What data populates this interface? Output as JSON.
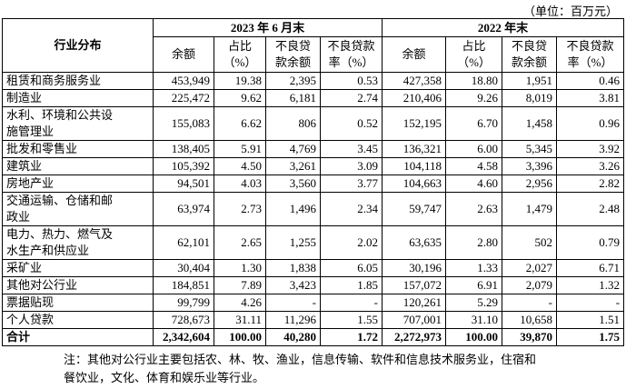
{
  "unit_note": "（单位：百万元）",
  "table": {
    "corner": "行业分布",
    "groups": [
      {
        "label": "2023 年 6 月末",
        "columns": [
          "余额",
          "占比\n（%）",
          "不良贷\n款余额",
          "不良贷款\n率（%）"
        ]
      },
      {
        "label": "2022 年末",
        "columns": [
          "余额",
          "占比\n（%）",
          "不良贷\n款余额",
          "不良贷款\n率（%）"
        ]
      }
    ],
    "rows": [
      [
        "租赁和商务服务业",
        "453,949",
        "19.38",
        "2,395",
        "0.53",
        "427,358",
        "18.80",
        "1,951",
        "0.46"
      ],
      [
        "制造业",
        "225,472",
        "9.62",
        "6,181",
        "2.74",
        "210,406",
        "9.26",
        "8,019",
        "3.81"
      ],
      [
        "水利、环境和公共设\n施管理业",
        "155,083",
        "6.62",
        "806",
        "0.52",
        "152,195",
        "6.70",
        "1,458",
        "0.96"
      ],
      [
        "批发和零售业",
        "138,405",
        "5.91",
        "4,769",
        "3.45",
        "136,321",
        "6.00",
        "5,345",
        "3.92"
      ],
      [
        "建筑业",
        "105,392",
        "4.50",
        "3,261",
        "3.09",
        "104,118",
        "4.58",
        "3,396",
        "3.26"
      ],
      [
        "房地产业",
        "94,501",
        "4.03",
        "3,560",
        "3.77",
        "104,663",
        "4.60",
        "2,956",
        "2.82"
      ],
      [
        "交通运输、仓储和邮\n政业",
        "63,974",
        "2.73",
        "1,496",
        "2.34",
        "59,747",
        "2.63",
        "1,479",
        "2.48"
      ],
      [
        "电力、热力、燃气及\n水生产和供应业",
        "62,101",
        "2.65",
        "1,255",
        "2.02",
        "63,635",
        "2.80",
        "502",
        "0.79"
      ],
      [
        "采矿业",
        "30,404",
        "1.30",
        "1,838",
        "6.05",
        "30,196",
        "1.33",
        "2,027",
        "6.71"
      ],
      [
        "其他对公行业",
        "184,851",
        "7.89",
        "3,423",
        "1.85",
        "157,072",
        "6.91",
        "2,079",
        "1.32"
      ],
      [
        "票据贴现",
        "99,799",
        "4.26",
        "-",
        "-",
        "120,261",
        "5.29",
        "-",
        "-"
      ],
      [
        "个人贷款",
        "728,673",
        "31.11",
        "11,296",
        "1.55",
        "707,001",
        "31.10",
        "10,658",
        "1.51"
      ],
      [
        "合计",
        "2,342,604",
        "100.00",
        "40,280",
        "1.72",
        "2,272,973",
        "100.00",
        "39,870",
        "1.75"
      ]
    ]
  },
  "note": "注：其他对公行业主要包括农、林、牧、渔业，信息传输、软件和信息技术服务业，住宿和\n餐饮业，文化、体育和娱乐业等行业。"
}
